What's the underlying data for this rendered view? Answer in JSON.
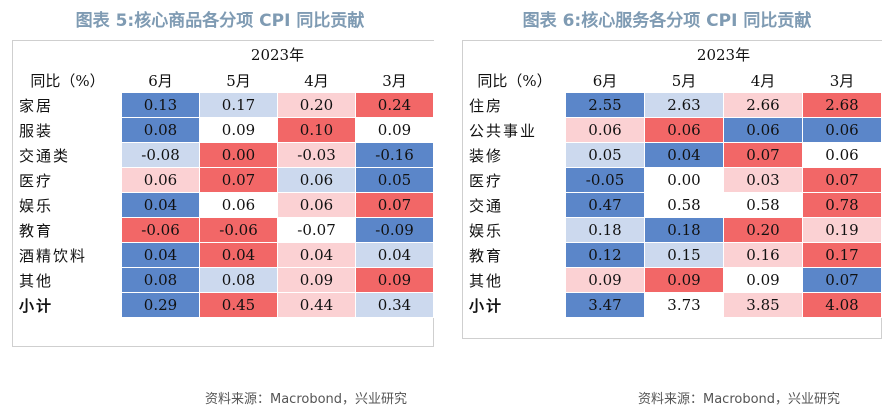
{
  "colors": {
    "strong_blue": "#5b86c9",
    "light_blue": "#ccd9ee",
    "strong_red": "#f26767",
    "light_red": "#fbd1d3",
    "white": "#ffffff"
  },
  "left": {
    "title": "图表 5:核心商品各分项 CPI 同比贡献",
    "year": "2023年",
    "corner": "同比（%）",
    "months": [
      "6月",
      "5月",
      "4月",
      "3月"
    ],
    "rows": [
      {
        "label": "家居",
        "values": [
          "0.13",
          "0.17",
          "0.20",
          "0.24"
        ],
        "shades": [
          "strong_blue",
          "light_blue",
          "light_red",
          "strong_red"
        ]
      },
      {
        "label": "服装",
        "values": [
          "0.08",
          "0.09",
          "0.10",
          "0.09"
        ],
        "shades": [
          "strong_blue",
          "white",
          "strong_red",
          "white"
        ]
      },
      {
        "label": "交通类",
        "values": [
          "-0.08",
          "0.00",
          "-0.03",
          "-0.16"
        ],
        "shades": [
          "light_blue",
          "strong_red",
          "light_red",
          "strong_blue"
        ]
      },
      {
        "label": "医疗",
        "values": [
          "0.06",
          "0.07",
          "0.06",
          "0.05"
        ],
        "shades": [
          "light_red",
          "strong_red",
          "light_blue",
          "strong_blue"
        ]
      },
      {
        "label": "娱乐",
        "values": [
          "0.04",
          "0.06",
          "0.06",
          "0.07"
        ],
        "shades": [
          "strong_blue",
          "white",
          "light_red",
          "strong_red"
        ]
      },
      {
        "label": "教育",
        "values": [
          "-0.06",
          "-0.06",
          "-0.07",
          "-0.09"
        ],
        "shades": [
          "strong_red",
          "strong_red",
          "white",
          "strong_blue"
        ]
      },
      {
        "label": "酒精饮料",
        "values": [
          "0.04",
          "0.04",
          "0.04",
          "0.04"
        ],
        "shades": [
          "strong_blue",
          "strong_red",
          "light_red",
          "light_blue"
        ]
      },
      {
        "label": "其他",
        "values": [
          "0.08",
          "0.08",
          "0.09",
          "0.09"
        ],
        "shades": [
          "strong_blue",
          "light_blue",
          "light_red",
          "strong_red"
        ]
      }
    ],
    "total": {
      "label": "小计",
      "values": [
        "0.29",
        "0.45",
        "0.44",
        "0.34"
      ],
      "shades": [
        "strong_blue",
        "strong_red",
        "light_red",
        "light_blue"
      ]
    },
    "source": "资料来源：Macrobond，兴业研究"
  },
  "right": {
    "title": "图表 6:核心服务各分项 CPI 同比贡献",
    "year": "2023年",
    "corner": "同比（%）",
    "months": [
      "6月",
      "5月",
      "4月",
      "3月"
    ],
    "rows": [
      {
        "label": "住房",
        "values": [
          "2.55",
          "2.63",
          "2.66",
          "2.68"
        ],
        "shades": [
          "strong_blue",
          "light_blue",
          "light_red",
          "strong_red"
        ]
      },
      {
        "label": "公共事业",
        "values": [
          "0.06",
          "0.06",
          "0.06",
          "0.06"
        ],
        "shades": [
          "light_red",
          "strong_red",
          "strong_blue",
          "strong_blue"
        ]
      },
      {
        "label": "装修",
        "values": [
          "0.05",
          "0.04",
          "0.07",
          "0.06"
        ],
        "shades": [
          "light_blue",
          "strong_blue",
          "strong_red",
          "white"
        ]
      },
      {
        "label": "医疗",
        "values": [
          "-0.05",
          "0.00",
          "0.03",
          "0.07"
        ],
        "shades": [
          "strong_blue",
          "white",
          "light_red",
          "strong_red"
        ]
      },
      {
        "label": "交通",
        "values": [
          "0.47",
          "0.58",
          "0.58",
          "0.78"
        ],
        "shades": [
          "strong_blue",
          "white",
          "white",
          "strong_red"
        ]
      },
      {
        "label": "娱乐",
        "values": [
          "0.18",
          "0.18",
          "0.20",
          "0.19"
        ],
        "shades": [
          "light_blue",
          "strong_blue",
          "strong_red",
          "light_red"
        ]
      },
      {
        "label": "教育",
        "values": [
          "0.12",
          "0.15",
          "0.16",
          "0.17"
        ],
        "shades": [
          "strong_blue",
          "light_blue",
          "light_red",
          "strong_red"
        ]
      },
      {
        "label": "其他",
        "values": [
          "0.09",
          "0.09",
          "0.09",
          "0.07"
        ],
        "shades": [
          "light_red",
          "strong_red",
          "white",
          "strong_blue"
        ]
      }
    ],
    "total": {
      "label": "小计",
      "values": [
        "3.47",
        "3.73",
        "3.85",
        "4.08"
      ],
      "shades": [
        "strong_blue",
        "white",
        "light_red",
        "strong_red"
      ]
    },
    "source": "资料来源：Macrobond，兴业研究"
  }
}
